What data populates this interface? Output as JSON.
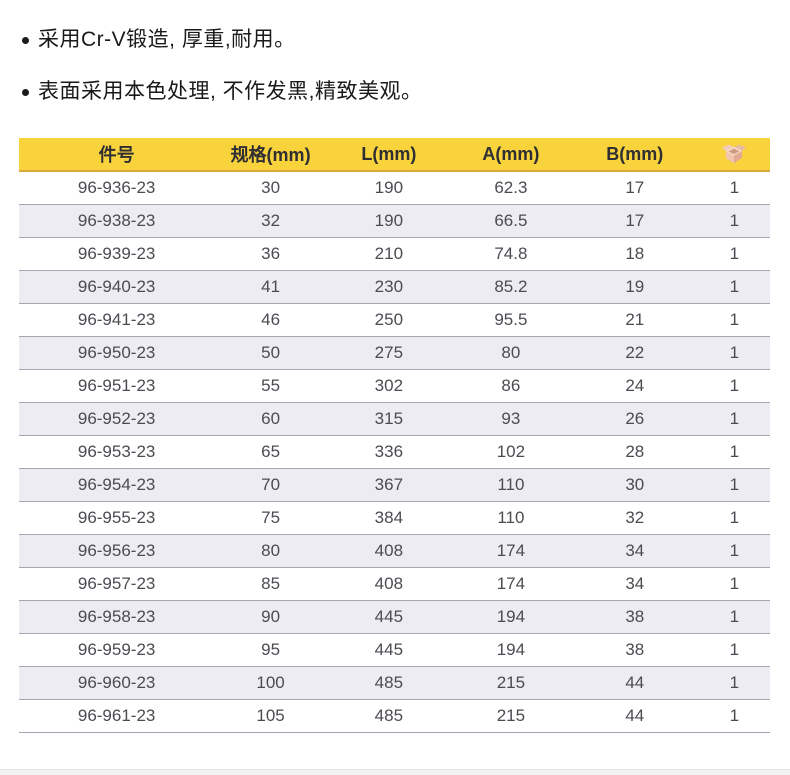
{
  "features": {
    "items": [
      "采用Cr-V锻造, 厚重,耐用。",
      "表面采用本色处理, 不作发黑,精致美观。"
    ]
  },
  "table": {
    "headers": {
      "part_no": "件号",
      "spec": "规格(mm)",
      "l": "L(mm)",
      "a": "A(mm)",
      "b": "B(mm)",
      "pack_icon": "package-box-icon"
    },
    "rows": [
      [
        "96-936-23",
        "30",
        "190",
        "62.3",
        "17",
        "1"
      ],
      [
        "96-938-23",
        "32",
        "190",
        "66.5",
        "17",
        "1"
      ],
      [
        "96-939-23",
        "36",
        "210",
        "74.8",
        "18",
        "1"
      ],
      [
        "96-940-23",
        "41",
        "230",
        "85.2",
        "19",
        "1"
      ],
      [
        "96-941-23",
        "46",
        "250",
        "95.5",
        "21",
        "1"
      ],
      [
        "96-950-23",
        "50",
        "275",
        "80",
        "22",
        "1"
      ],
      [
        "96-951-23",
        "55",
        "302",
        "86",
        "24",
        "1"
      ],
      [
        "96-952-23",
        "60",
        "315",
        "93",
        "26",
        "1"
      ],
      [
        "96-953-23",
        "65",
        "336",
        "102",
        "28",
        "1"
      ],
      [
        "96-954-23",
        "70",
        "367",
        "110",
        "30",
        "1"
      ],
      [
        "96-955-23",
        "75",
        "384",
        "110",
        "32",
        "1"
      ],
      [
        "96-956-23",
        "80",
        "408",
        "174",
        "34",
        "1"
      ],
      [
        "96-957-23",
        "85",
        "408",
        "174",
        "34",
        "1"
      ],
      [
        "96-958-23",
        "90",
        "445",
        "194",
        "38",
        "1"
      ],
      [
        "96-959-23",
        "95",
        "445",
        "194",
        "38",
        "1"
      ],
      [
        "96-960-23",
        "100",
        "485",
        "215",
        "44",
        "1"
      ],
      [
        "96-961-23",
        "105",
        "485",
        "215",
        "44",
        "1"
      ]
    ]
  },
  "colors": {
    "header_bg": "#F8D33C",
    "header_border": "#D9A83E",
    "alt_row_bg": "#ECECF2",
    "row_divider": "#A5A5B1",
    "cell_text": "#4B4B52",
    "header_text": "#2E2E33",
    "bullet_text": "#1A1A1A",
    "footer_strip": "#F2F2F3"
  }
}
